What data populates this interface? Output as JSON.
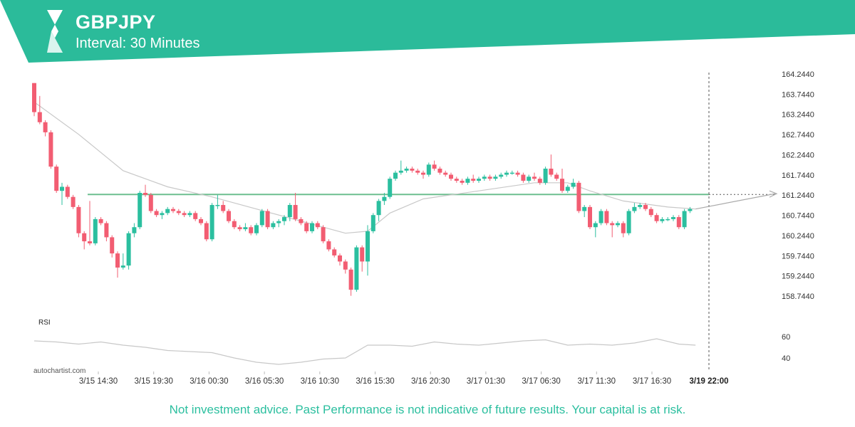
{
  "header": {
    "title": "GBPJPY",
    "subtitle": "Interval: 30 Minutes",
    "accent_color": "#2bbb9a",
    "logo_icon": "autochartist-logo-icon"
  },
  "footer": {
    "disclaimer": "Not investment advice. Past Performance is not indicative of future results. Your capital is at risk.",
    "watermark": "autochartist.com"
  },
  "chart_data": {
    "type": "candlestick",
    "price_axis": {
      "ticks": [
        164.244,
        163.744,
        163.244,
        162.744,
        162.244,
        161.744,
        161.244,
        160.744,
        160.244,
        159.744,
        159.244,
        158.744
      ],
      "tick_labels": [
        "164.2440",
        "163.7440",
        "163.2440",
        "162.7440",
        "162.2440",
        "161.7440",
        "161.2440",
        "160.7440",
        "160.2440",
        "159.7440",
        "159.2440",
        "158.7440"
      ],
      "ylim": [
        158.3,
        164.35
      ]
    },
    "time_axis": {
      "labels": [
        "3/15 14:30",
        "3/15 19:30",
        "3/16 00:30",
        "3/16 05:30",
        "3/16 10:30",
        "3/16 15:30",
        "3/16 20:30",
        "3/17 01:30",
        "3/17 06:30",
        "3/17 11:30",
        "3/17 16:30"
      ],
      "highlight_label": "3/19 22:00"
    },
    "level_line": {
      "value": 161.26,
      "color": "#6dbf8f"
    },
    "colors": {
      "up": "#2bbf9f",
      "down": "#f25d72",
      "ma": "#c8c8c8",
      "rsi": "#c8c8c8"
    },
    "candles": [
      [
        164.02,
        164.02,
        163.2,
        163.3
      ],
      [
        163.3,
        163.7,
        163.0,
        163.05
      ],
      [
        163.05,
        163.1,
        162.7,
        162.8
      ],
      [
        162.8,
        162.85,
        161.9,
        161.95
      ],
      [
        161.95,
        162.0,
        161.3,
        161.35
      ],
      [
        161.35,
        161.55,
        161.0,
        161.45
      ],
      [
        161.45,
        161.5,
        161.15,
        161.2
      ],
      [
        161.2,
        161.25,
        160.9,
        160.95
      ],
      [
        160.95,
        161.0,
        160.2,
        160.3
      ],
      [
        160.3,
        160.35,
        159.9,
        160.1
      ],
      [
        160.1,
        161.1,
        160.0,
        160.05
      ],
      [
        160.05,
        160.7,
        160.0,
        160.65
      ],
      [
        160.65,
        160.7,
        160.5,
        160.55
      ],
      [
        160.55,
        160.6,
        160.1,
        160.2
      ],
      [
        160.2,
        160.25,
        159.7,
        159.8
      ],
      [
        159.8,
        159.85,
        159.2,
        159.45
      ],
      [
        159.45,
        159.8,
        159.4,
        159.5
      ],
      [
        159.5,
        160.35,
        159.4,
        160.3
      ],
      [
        160.3,
        160.55,
        160.2,
        160.45
      ],
      [
        160.45,
        161.35,
        160.4,
        161.3
      ],
      [
        161.3,
        161.5,
        161.2,
        161.25
      ],
      [
        161.25,
        161.3,
        160.8,
        160.85
      ],
      [
        160.85,
        160.9,
        160.7,
        160.75
      ],
      [
        160.75,
        160.85,
        160.65,
        160.8
      ],
      [
        160.8,
        160.95,
        160.75,
        160.9
      ],
      [
        160.9,
        160.95,
        160.8,
        160.85
      ],
      [
        160.85,
        160.9,
        160.75,
        160.8
      ],
      [
        160.8,
        160.85,
        160.7,
        160.75
      ],
      [
        160.75,
        160.85,
        160.7,
        160.8
      ],
      [
        160.8,
        160.85,
        160.6,
        160.65
      ],
      [
        160.65,
        160.7,
        160.5,
        160.55
      ],
      [
        160.55,
        160.6,
        160.1,
        160.15
      ],
      [
        160.15,
        161.05,
        160.1,
        161.0
      ],
      [
        161.0,
        161.25,
        160.9,
        161.0
      ],
      [
        161.0,
        161.1,
        160.8,
        160.85
      ],
      [
        160.85,
        160.9,
        160.55,
        160.6
      ],
      [
        160.6,
        160.65,
        160.4,
        160.45
      ],
      [
        160.45,
        160.5,
        160.35,
        160.4
      ],
      [
        160.4,
        160.55,
        160.35,
        160.45
      ],
      [
        160.45,
        160.5,
        160.25,
        160.3
      ],
      [
        160.3,
        160.55,
        160.25,
        160.5
      ],
      [
        160.5,
        160.9,
        160.45,
        160.85
      ],
      [
        160.85,
        160.9,
        160.4,
        160.45
      ],
      [
        160.45,
        160.6,
        160.4,
        160.55
      ],
      [
        160.55,
        160.65,
        160.45,
        160.6
      ],
      [
        160.6,
        160.75,
        160.5,
        160.7
      ],
      [
        160.7,
        161.05,
        160.6,
        161.0
      ],
      [
        161.0,
        161.3,
        160.6,
        160.65
      ],
      [
        160.65,
        160.7,
        160.5,
        160.55
      ],
      [
        160.55,
        160.6,
        160.3,
        160.35
      ],
      [
        160.35,
        160.6,
        160.3,
        160.55
      ],
      [
        160.55,
        160.6,
        160.4,
        160.45
      ],
      [
        160.45,
        160.5,
        160.05,
        160.1
      ],
      [
        160.1,
        160.15,
        159.85,
        159.9
      ],
      [
        159.9,
        159.95,
        159.7,
        159.75
      ],
      [
        159.75,
        159.8,
        159.5,
        159.6
      ],
      [
        159.6,
        159.65,
        159.3,
        159.4
      ],
      [
        159.4,
        159.45,
        158.75,
        158.9
      ],
      [
        158.9,
        160.0,
        158.85,
        159.95
      ],
      [
        159.95,
        160.0,
        159.35,
        159.6
      ],
      [
        159.6,
        160.5,
        159.25,
        160.35
      ],
      [
        160.35,
        160.8,
        160.3,
        160.75
      ],
      [
        160.75,
        161.15,
        160.6,
        161.1
      ],
      [
        161.1,
        161.3,
        161.0,
        161.2
      ],
      [
        161.2,
        161.7,
        161.15,
        161.65
      ],
      [
        161.65,
        161.85,
        161.6,
        161.8
      ],
      [
        161.8,
        162.1,
        161.75,
        161.85
      ],
      [
        161.85,
        161.95,
        161.8,
        161.9
      ],
      [
        161.9,
        161.95,
        161.8,
        161.85
      ],
      [
        161.85,
        161.9,
        161.75,
        161.8
      ],
      [
        161.8,
        161.85,
        161.65,
        161.75
      ],
      [
        161.75,
        162.05,
        161.7,
        162.0
      ],
      [
        162.0,
        162.1,
        161.85,
        161.9
      ],
      [
        161.9,
        161.95,
        161.75,
        161.8
      ],
      [
        161.8,
        161.85,
        161.7,
        161.75
      ],
      [
        161.75,
        161.8,
        161.6,
        161.65
      ],
      [
        161.65,
        161.7,
        161.55,
        161.6
      ],
      [
        161.6,
        161.65,
        161.5,
        161.55
      ],
      [
        161.55,
        161.7,
        161.5,
        161.65
      ],
      [
        161.65,
        161.75,
        161.55,
        161.6
      ],
      [
        161.6,
        161.7,
        161.55,
        161.65
      ],
      [
        161.65,
        161.75,
        161.6,
        161.7
      ],
      [
        161.7,
        161.75,
        161.6,
        161.65
      ],
      [
        161.65,
        161.75,
        161.6,
        161.7
      ],
      [
        161.7,
        161.8,
        161.65,
        161.75
      ],
      [
        161.75,
        161.85,
        161.7,
        161.8
      ],
      [
        161.8,
        161.85,
        161.75,
        161.8
      ],
      [
        161.8,
        161.85,
        161.7,
        161.75
      ],
      [
        161.75,
        161.8,
        161.55,
        161.6
      ],
      [
        161.6,
        161.75,
        161.55,
        161.7
      ],
      [
        161.7,
        161.8,
        161.6,
        161.65
      ],
      [
        161.65,
        161.7,
        161.5,
        161.55
      ],
      [
        161.55,
        161.95,
        161.5,
        161.9
      ],
      [
        161.9,
        162.25,
        161.7,
        161.75
      ],
      [
        161.75,
        161.8,
        161.6,
        161.65
      ],
      [
        161.65,
        161.9,
        161.3,
        161.35
      ],
      [
        161.35,
        161.5,
        161.3,
        161.45
      ],
      [
        161.45,
        161.65,
        161.4,
        161.55
      ],
      [
        161.55,
        161.6,
        160.8,
        160.85
      ],
      [
        160.85,
        161.0,
        160.7,
        160.95
      ],
      [
        160.95,
        161.0,
        160.4,
        160.45
      ],
      [
        160.45,
        160.6,
        160.2,
        160.55
      ],
      [
        160.55,
        160.9,
        160.5,
        160.85
      ],
      [
        160.85,
        160.9,
        160.5,
        160.55
      ],
      [
        160.55,
        160.6,
        160.2,
        160.5
      ],
      [
        160.5,
        160.6,
        160.45,
        160.55
      ],
      [
        160.55,
        160.6,
        160.2,
        160.3
      ],
      [
        160.3,
        160.9,
        160.25,
        160.85
      ],
      [
        160.85,
        161.05,
        160.8,
        160.95
      ],
      [
        160.95,
        161.05,
        160.9,
        161.0
      ],
      [
        161.0,
        161.05,
        160.85,
        160.9
      ],
      [
        160.9,
        160.95,
        160.7,
        160.75
      ],
      [
        160.75,
        160.8,
        160.55,
        160.6
      ],
      [
        160.6,
        160.7,
        160.55,
        160.65
      ],
      [
        160.65,
        160.7,
        160.6,
        160.65
      ],
      [
        160.65,
        160.75,
        160.6,
        160.7
      ],
      [
        160.7,
        160.75,
        160.4,
        160.45
      ],
      [
        160.45,
        160.9,
        160.4,
        160.85
      ],
      [
        160.85,
        160.95,
        160.8,
        160.9
      ]
    ],
    "moving_average": [
      [
        0,
        163.55
      ],
      [
        8,
        162.75
      ],
      [
        16,
        161.85
      ],
      [
        24,
        161.45
      ],
      [
        32,
        161.2
      ],
      [
        40,
        160.9
      ],
      [
        48,
        160.6
      ],
      [
        56,
        160.3
      ],
      [
        60,
        160.35
      ],
      [
        64,
        160.8
      ],
      [
        70,
        161.15
      ],
      [
        80,
        161.35
      ],
      [
        90,
        161.55
      ],
      [
        96,
        161.55
      ],
      [
        100,
        161.35
      ],
      [
        106,
        161.1
      ],
      [
        114,
        160.95
      ],
      [
        119,
        160.9
      ]
    ],
    "projection": {
      "from_index": 119,
      "from_value": 160.9,
      "to_value": 161.28
    },
    "rsi": {
      "label": "RSI",
      "ticks": [
        60,
        40
      ],
      "range": [
        30,
        70
      ],
      "points": [
        [
          0,
          56
        ],
        [
          4,
          55
        ],
        [
          8,
          53
        ],
        [
          12,
          55
        ],
        [
          16,
          52
        ],
        [
          20,
          50
        ],
        [
          24,
          47
        ],
        [
          28,
          46
        ],
        [
          32,
          45
        ],
        [
          36,
          40
        ],
        [
          40,
          36
        ],
        [
          44,
          34
        ],
        [
          48,
          36
        ],
        [
          52,
          39
        ],
        [
          56,
          40
        ],
        [
          60,
          52
        ],
        [
          64,
          52
        ],
        [
          68,
          51
        ],
        [
          72,
          55
        ],
        [
          76,
          53
        ],
        [
          80,
          52
        ],
        [
          84,
          54
        ],
        [
          88,
          56
        ],
        [
          92,
          57
        ],
        [
          96,
          52
        ],
        [
          100,
          53
        ],
        [
          104,
          52
        ],
        [
          108,
          54
        ],
        [
          112,
          58
        ],
        [
          116,
          53
        ],
        [
          119,
          52
        ]
      ]
    }
  }
}
